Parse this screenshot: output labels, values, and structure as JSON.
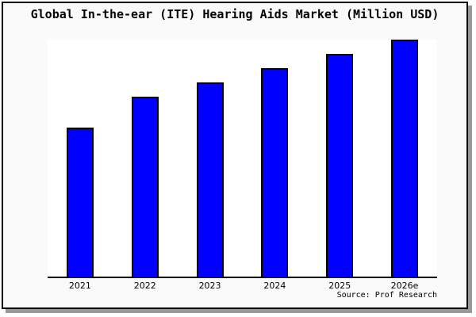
{
  "title": "Global In-the-ear (ITE) Hearing Aids Market (Million USD)",
  "source_caption": "Source: Prof Research",
  "colors": {
    "bar_fill": "#0000ff",
    "bar_border": "#000000",
    "frame_background": "#fafafa",
    "plot_background": "#ffffff",
    "axis_line": "#000000",
    "frame_shadow": "#999999"
  },
  "chart_data": {
    "type": "bar",
    "title": "Global In-the-ear (ITE) Hearing Aids Market (Million USD)",
    "categories": [
      "2021",
      "2022",
      "2023",
      "2024",
      "2025",
      "2026e"
    ],
    "values": [
      63,
      76,
      82,
      88,
      94,
      100
    ],
    "value_scale": "relative index, tallest bar (2026e) = 100; no y-axis tick labels or data labels are shown in the chart",
    "xlabel": "",
    "ylabel": "",
    "ylim": [
      0,
      100
    ],
    "grid": false,
    "legend": false,
    "annotations": [
      "Source: Prof Research"
    ]
  }
}
